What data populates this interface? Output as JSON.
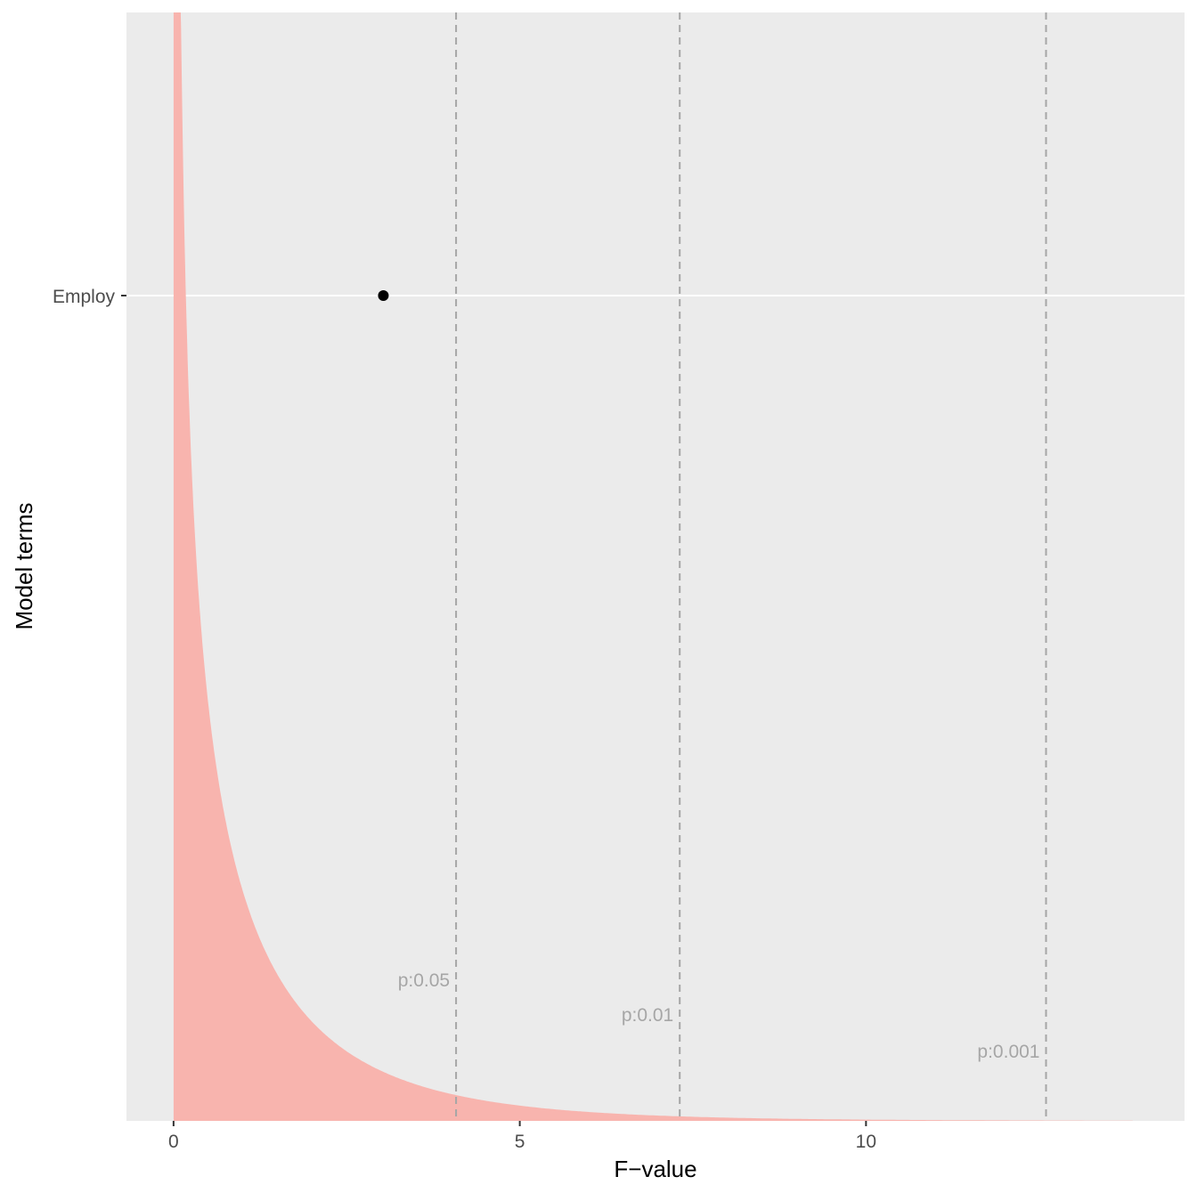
{
  "chart_data": {
    "type": "scatter",
    "xlabel": "F−value",
    "ylabel": "Model terms",
    "xlim": [
      -0.68,
      14.6
    ],
    "x_ticks": [
      {
        "value": 0,
        "label": "0"
      },
      {
        "value": 5,
        "label": "5"
      },
      {
        "value": 10,
        "label": "10"
      }
    ],
    "y_categories": [
      "Employ"
    ],
    "points": [
      {
        "term": "Employ",
        "f_value": 3.03
      }
    ],
    "thresholds": [
      {
        "f_value": 4.08,
        "label": "p:0.05"
      },
      {
        "f_value": 7.31,
        "label": "p:0.01"
      },
      {
        "f_value": 12.6,
        "label": "p:0.001"
      }
    ],
    "density": {
      "distribution": "F",
      "df1": 1,
      "df2": 40,
      "x_range": [
        0,
        13.85
      ]
    },
    "grid": true,
    "colors": {
      "panel_background": "#ebebeb",
      "gridline": "#ffffff",
      "density_fill": "#f8b4ae",
      "threshold_line": "#a6a6a6",
      "point": "#000000"
    }
  }
}
